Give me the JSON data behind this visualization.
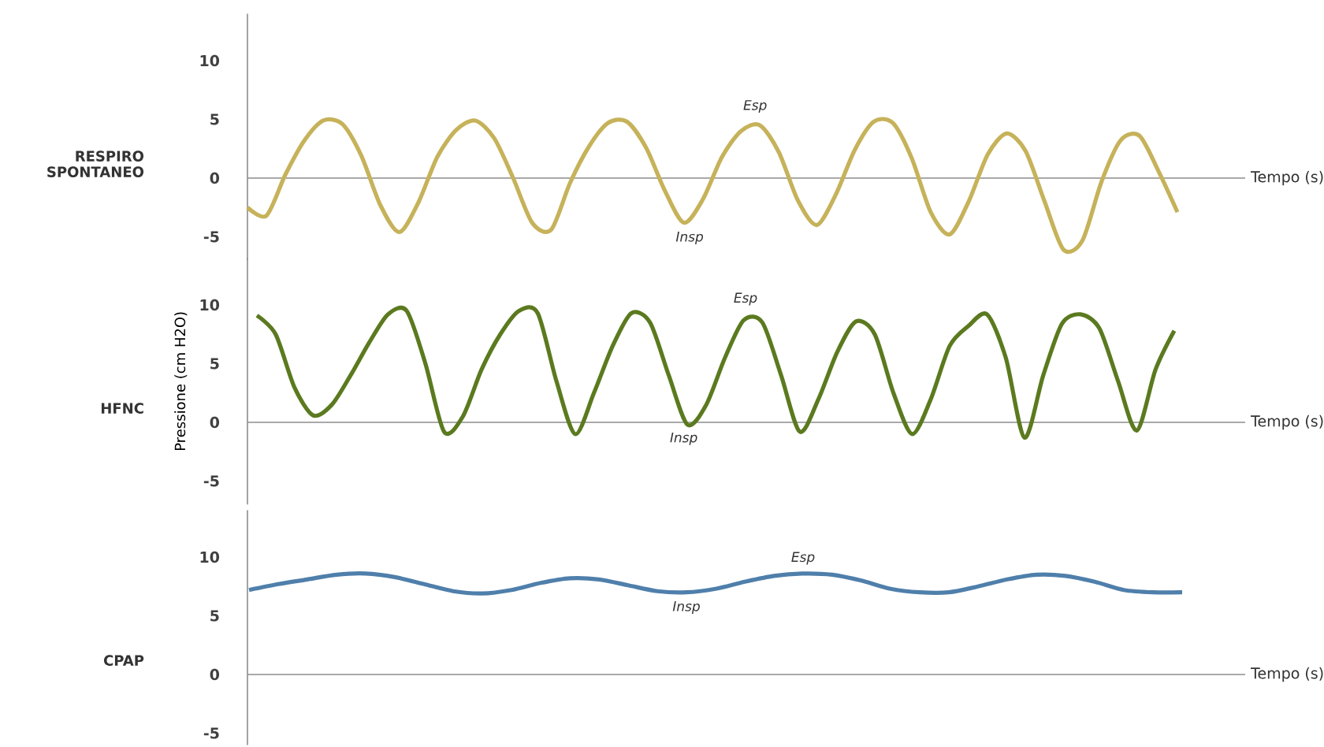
{
  "chart_data": [
    {
      "type": "line",
      "title": "RESPIRO SPONTANEO",
      "xlabel": "Tempo (s)",
      "categories": [
        null,
        null,
        null,
        null,
        null,
        null,
        null,
        null,
        null,
        null,
        null,
        null,
        null,
        null,
        null,
        null,
        null,
        null,
        null,
        null,
        null,
        null,
        null,
        null,
        null,
        null,
        null,
        null,
        null,
        null,
        null,
        null,
        null,
        null,
        null,
        null,
        null,
        null,
        null,
        null,
        null,
        null,
        null,
        null,
        null,
        null,
        null,
        null,
        null,
        null
      ],
      "series": [
        {
          "color": "#c6b25a",
          "values": [
            -2.5,
            -3.2,
            0.3,
            3.2,
            4.9,
            4.6,
            1.9,
            -2.3,
            -4.6,
            -2.1,
            1.8,
            4.1,
            4.9,
            3.4,
            0,
            -3.8,
            -4.4,
            -0.4,
            2.7,
            4.7,
            4.8,
            2.6,
            -1.1,
            -3.8,
            -1.8,
            1.8,
            4.0,
            4.5,
            2.2,
            -1.9,
            -4.0,
            -1.4,
            2.4,
            4.8,
            4.7,
            1.7,
            -2.9,
            -4.8,
            -2.0,
            2.0,
            3.8,
            2.3,
            -2.0,
            -6.1,
            -5.3,
            -0.3,
            3.2,
            3.6,
            0.6,
            -2.9
          ]
        }
      ],
      "ylim": [
        -7,
        14
      ],
      "yticks": [
        -5,
        0,
        5,
        10
      ],
      "annotations": [
        "Esp",
        "Insp"
      ]
    },
    {
      "type": "line",
      "title": "HFNC",
      "xlabel": "Tempo (s)",
      "ylabel": "Pressione (cm H2O)",
      "categories": [
        null,
        null,
        null,
        null,
        null,
        null,
        null,
        null,
        null,
        null,
        null,
        null,
        null,
        null,
        null,
        null,
        null,
        null,
        null,
        null,
        null,
        null,
        null,
        null,
        null,
        null,
        null,
        null,
        null,
        null,
        null,
        null,
        null,
        null,
        null,
        null,
        null,
        null,
        null,
        null,
        null,
        null,
        null,
        null,
        null,
        null,
        null,
        null,
        null,
        null
      ],
      "series": [
        {
          "color": "#5b7a1f",
          "values": [
            9.1,
            7.5,
            3.0,
            0.6,
            1.5,
            4.0,
            6.8,
            9.2,
            9.5,
            5.0,
            -0.8,
            0.5,
            4.5,
            7.5,
            9.5,
            9.3,
            3.5,
            -1.0,
            2.5,
            6.5,
            9.3,
            8.5,
            4.0,
            -0.2,
            1.5,
            5.5,
            8.7,
            8.5,
            4.0,
            -0.8,
            2.0,
            6.0,
            8.6,
            7.5,
            2.5,
            -1.0,
            2.0,
            6.5,
            8.2,
            9.2,
            5.5,
            -1.3,
            4.0,
            8.4,
            9.2,
            8.0,
            3.5,
            -0.7,
            4.5,
            7.8
          ]
        }
      ],
      "ylim": [
        -7,
        14
      ],
      "yticks": [
        -5,
        0,
        5,
        10
      ],
      "annotations": [
        "Esp",
        "Insp"
      ]
    },
    {
      "type": "line",
      "title": "CPAP",
      "xlabel": "Tempo (s)",
      "categories": [
        null,
        null,
        null,
        null,
        null,
        null,
        null,
        null,
        null,
        null,
        null,
        null,
        null,
        null,
        null,
        null,
        null,
        null,
        null,
        null,
        null,
        null,
        null,
        null,
        null,
        null,
        null,
        null,
        null,
        null,
        null,
        null,
        null
      ],
      "series": [
        {
          "color": "#4f7fab",
          "values": [
            7.2,
            7.7,
            8.1,
            8.5,
            8.6,
            8.3,
            7.7,
            7.1,
            6.9,
            7.2,
            7.8,
            8.2,
            8.1,
            7.6,
            7.1,
            7.0,
            7.3,
            7.9,
            8.4,
            8.6,
            8.5,
            8.0,
            7.3,
            7.0,
            7.0,
            7.5,
            8.1,
            8.5,
            8.4,
            7.9,
            7.2,
            7.0,
            7.0
          ]
        }
      ],
      "ylim": [
        -6,
        14
      ],
      "yticks": [
        -5,
        0,
        5,
        10
      ],
      "annotations": [
        "Esp",
        "Insp"
      ]
    }
  ]
}
